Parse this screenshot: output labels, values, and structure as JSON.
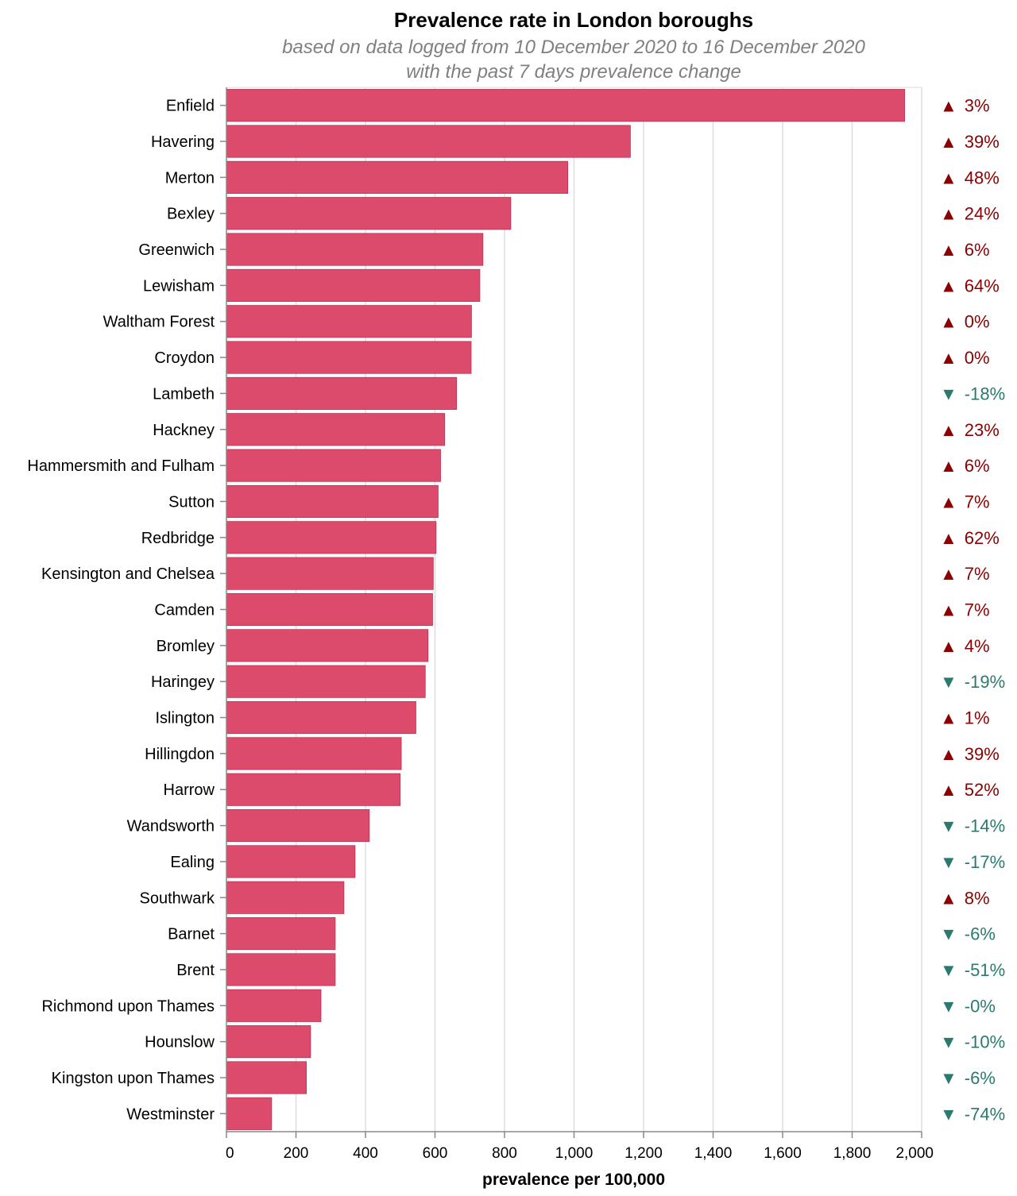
{
  "chart_data": {
    "type": "bar",
    "orientation": "horizontal",
    "title": "Prevalence rate in London boroughs",
    "subtitle": [
      "based on data logged from 10 December 2020 to 16 December 2020",
      "with the past 7 days prevalence change"
    ],
    "xlabel": "prevalence per 100,000",
    "ylabel": "",
    "xlim": [
      0,
      2000
    ],
    "xticks": [
      0,
      200,
      400,
      600,
      800,
      1000,
      1200,
      1400,
      1600,
      1800,
      2000
    ],
    "xtick_labels": [
      "0",
      "200",
      "400",
      "600",
      "800",
      "1,000",
      "1,200",
      "1,400",
      "1,600",
      "1,800",
      "2,000"
    ],
    "grid": "vertical",
    "bar_color": "#dc4b6c",
    "up_color": "#8b0000",
    "down_color": "#2a7a6f",
    "up_symbol": "▲",
    "down_symbol": "▼",
    "categories": [
      "Enfield",
      "Havering",
      "Merton",
      "Bexley",
      "Greenwich",
      "Lewisham",
      "Waltham Forest",
      "Croydon",
      "Lambeth",
      "Hackney",
      "Hammersmith and Fulham",
      "Sutton",
      "Redbridge",
      "Kensington and Chelsea",
      "Camden",
      "Bromley",
      "Haringey",
      "Islington",
      "Hillingdon",
      "Harrow",
      "Wandsworth",
      "Ealing",
      "Southwark",
      "Barnet",
      "Brent",
      "Richmond upon Thames",
      "Hounslow",
      "Kingston upon Thames",
      "Westminster"
    ],
    "values": [
      1951,
      1162,
      982,
      818,
      738,
      729,
      705,
      704,
      662,
      628,
      616,
      609,
      603,
      595,
      593,
      580,
      572,
      545,
      503,
      500,
      411,
      370,
      338,
      313,
      313,
      272,
      242,
      230,
      130
    ],
    "changes": [
      "3%",
      "39%",
      "48%",
      "24%",
      "6%",
      "64%",
      "0%",
      "0%",
      "-18%",
      "23%",
      "6%",
      "7%",
      "62%",
      "7%",
      "7%",
      "4%",
      "-19%",
      "1%",
      "39%",
      "52%",
      "-14%",
      "-17%",
      "8%",
      "-6%",
      "-51%",
      "-0%",
      "-10%",
      "-6%",
      "-74%"
    ],
    "change_direction": [
      "up",
      "up",
      "up",
      "up",
      "up",
      "up",
      "up",
      "up",
      "down",
      "up",
      "up",
      "up",
      "up",
      "up",
      "up",
      "up",
      "down",
      "up",
      "up",
      "up",
      "down",
      "down",
      "up",
      "down",
      "down",
      "down",
      "down",
      "down",
      "down"
    ]
  }
}
